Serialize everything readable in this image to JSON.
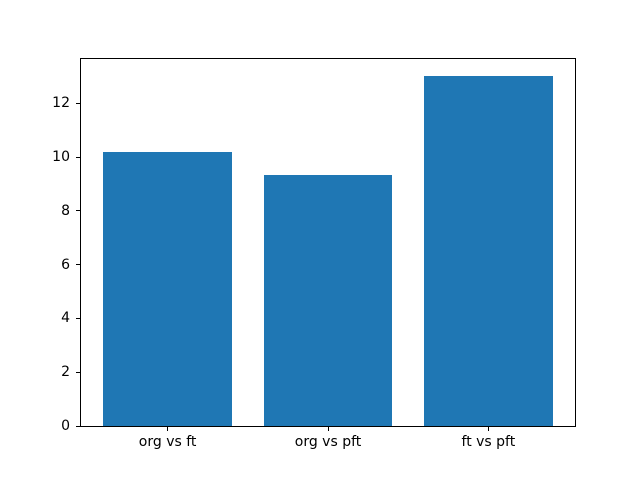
{
  "chart_data": {
    "type": "bar",
    "categories": [
      "org vs ft",
      "org vs pft",
      "ft vs pft"
    ],
    "values": [
      10.2,
      9.33,
      13.0
    ],
    "title": "",
    "xlabel": "",
    "ylabel": "",
    "x_positions": [
      0,
      1,
      2
    ],
    "bar_width": 0.8,
    "xlim": [
      -0.54,
      2.54
    ],
    "ylim": [
      0,
      13.65
    ],
    "yticks": [
      0,
      2,
      4,
      6,
      8,
      10,
      12
    ],
    "bar_color": "#1f77b4",
    "background_color": "#ffffff",
    "spine_color": "#000000",
    "grid": false,
    "legend": "none"
  }
}
